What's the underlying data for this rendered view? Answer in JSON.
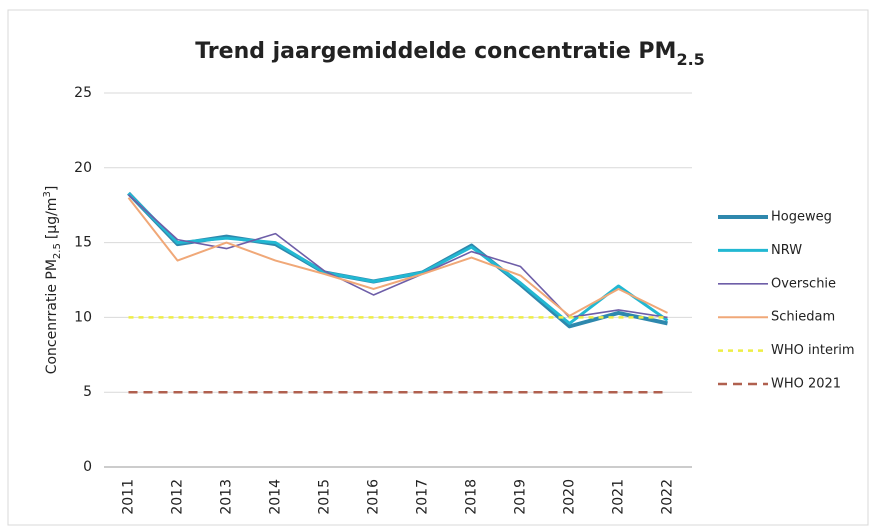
{
  "chart_data": {
    "type": "line",
    "title": "Trend jaargemiddelde concentratie PM",
    "title_subscript": "2.5",
    "ylabel": [
      "Concenrratie PM",
      "2.5",
      "[µg/m",
      "3",
      "]"
    ],
    "categories": [
      "2011",
      "2012",
      "2013",
      "2014",
      "2015",
      "2016",
      "2017",
      "2018",
      "2019",
      "2020",
      "2021",
      "2022"
    ],
    "series": [
      {
        "name": "Hogeweg",
        "color": "#2e88ad",
        "values": [
          18.3,
          14.9,
          15.4,
          14.9,
          13.0,
          12.4,
          13.0,
          14.8,
          12.2,
          9.4,
          10.3,
          9.6
        ]
      },
      {
        "name": "NRW",
        "color": "#22b8d2",
        "values": [
          18.3,
          15.0,
          15.3,
          15.0,
          13.0,
          12.4,
          13.0,
          14.7,
          12.3,
          9.6,
          12.1,
          9.8
        ]
      },
      {
        "name": "Overschie",
        "color": "#6e5ea8",
        "values": [
          18.2,
          15.2,
          14.6,
          15.6,
          13.1,
          11.5,
          12.9,
          14.4,
          13.4,
          10.0,
          10.5,
          10.0
        ]
      },
      {
        "name": "Schiedam",
        "color": "#f0a878",
        "values": [
          18.0,
          13.8,
          15.0,
          13.8,
          12.9,
          11.9,
          12.9,
          14.0,
          12.8,
          10.1,
          11.9,
          10.3
        ]
      },
      {
        "name": "WHO interim",
        "color": "#eeee44",
        "dash": true,
        "values": [
          10,
          10,
          10,
          10,
          10,
          10,
          10,
          10,
          10,
          10,
          10,
          10
        ]
      },
      {
        "name": "WHO 2021",
        "color": "#b0604f",
        "dash": true,
        "values": [
          5,
          5,
          5,
          5,
          5,
          5,
          5,
          5,
          5,
          5,
          5,
          5
        ]
      }
    ],
    "ylim": [
      0,
      25
    ],
    "yticks": [
      0,
      5,
      10,
      15,
      20,
      25
    ],
    "grid": true,
    "legend": "right"
  }
}
